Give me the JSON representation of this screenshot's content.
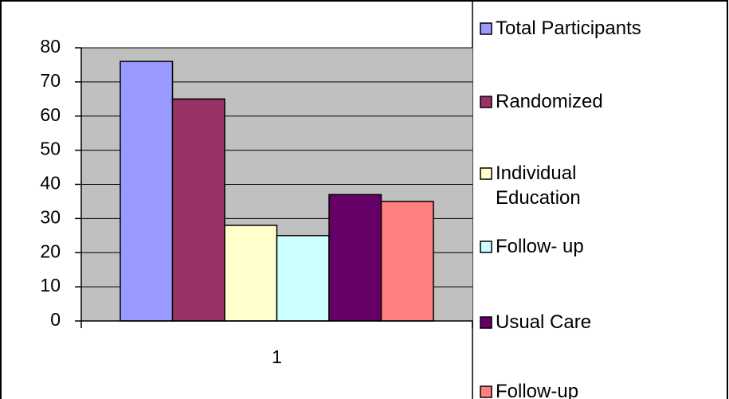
{
  "chart_data": {
    "type": "bar",
    "categories": [
      "1"
    ],
    "series": [
      {
        "name": "Total Participants",
        "color": "#9999ff",
        "values": [
          76
        ]
      },
      {
        "name": "Randomized",
        "color": "#993366",
        "values": [
          65
        ]
      },
      {
        "name": "Individual Education",
        "color": "#ffffcc",
        "values": [
          28
        ]
      },
      {
        "name": "Follow- up",
        "color": "#ccffff",
        "values": [
          25
        ]
      },
      {
        "name": "Usual Care",
        "color": "#660066",
        "values": [
          37
        ]
      },
      {
        "name": "Follow-up",
        "color": "#ff8080",
        "values": [
          35
        ]
      }
    ],
    "ylim": [
      0,
      80
    ],
    "yticks": [
      0,
      10,
      20,
      30,
      40,
      50,
      60,
      70,
      80
    ],
    "grid": true,
    "legend": "right"
  }
}
